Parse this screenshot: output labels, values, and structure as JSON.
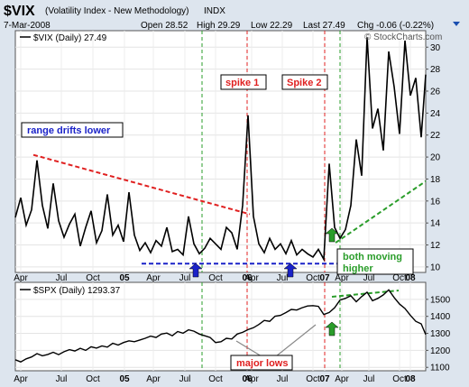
{
  "header": {
    "symbol": "$VIX",
    "name": "(Volatility Index - New Methodology)",
    "exchange": "INDX",
    "date": "7-Mar-2008",
    "open": "Open 28.52",
    "high": "High 29.29",
    "low": "Low 22.29",
    "last": "Last 27.49",
    "change": "Chg -0.06 (-0.22%)",
    "copyright": "© StockCharts.com"
  },
  "chart_data": [
    {
      "type": "line",
      "legend": "$VIX (Daily) 27.49",
      "ylim": [
        9.5,
        31.5
      ],
      "yticks": [
        10,
        12,
        14,
        16,
        18,
        20,
        22,
        24,
        26,
        28,
        30
      ],
      "x": [
        0,
        6,
        12,
        18,
        24,
        30,
        36,
        42,
        48,
        54,
        60,
        66,
        72,
        78,
        84,
        90,
        96,
        102,
        108,
        114,
        120,
        126,
        132,
        138,
        144,
        150,
        156,
        162,
        168,
        174,
        180,
        186,
        192,
        198,
        204,
        210,
        216,
        222,
        228,
        234,
        240,
        246,
        252,
        258,
        264,
        270,
        276,
        282,
        288,
        294,
        300,
        306,
        312,
        318,
        324,
        330,
        336,
        342,
        348,
        354,
        360,
        366,
        372,
        378,
        384,
        390,
        396,
        402,
        408,
        414,
        420,
        426,
        432,
        438,
        444,
        450,
        455
      ],
      "y": [
        14.5,
        16.3,
        13.8,
        15.2,
        19.7,
        15.6,
        13.5,
        17.6,
        14.2,
        12.7,
        13.9,
        14.8,
        11.9,
        13.6,
        15.1,
        12.2,
        13.3,
        16.6,
        12.9,
        13.8,
        12.3,
        16.8,
        12.9,
        11.5,
        12.2,
        11.3,
        12.4,
        11.9,
        13.6,
        11.4,
        11.6,
        11.1,
        14.6,
        12.1,
        11.2,
        11.7,
        12.6,
        12.1,
        11.6,
        13.6,
        13.1,
        11.6,
        15.6,
        23.8,
        14.6,
        12.1,
        11.3,
        12.6,
        11.6,
        12.1,
        11.2,
        12.4,
        11.1,
        11.6,
        11.2,
        10.9,
        11.6,
        10.7,
        19.4,
        13.6,
        12.6,
        13.4,
        15.6,
        21.6,
        18.3,
        30.9,
        22.6,
        24.4,
        20.6,
        29.6,
        26.4,
        22.1,
        30.6,
        25.6,
        27.2,
        21.8,
        27.5
      ],
      "lines": [
        {
          "from": [
            20,
            20.2
          ],
          "to": [
            260,
            14.8
          ],
          "color": "#e02020"
        },
        {
          "from": [
            355,
            12.2
          ],
          "to": [
            455,
            17.8
          ],
          "color": "#2a9d2a"
        },
        {
          "from": [
            140,
            10.3
          ],
          "to": [
            360,
            10.3
          ],
          "color": "#1a22c8"
        }
      ]
    },
    {
      "type": "line",
      "legend": "$SPX (Daily) 1293.37",
      "ylim": [
        1080,
        1600
      ],
      "yticks": [
        1100,
        1200,
        1300,
        1400,
        1500
      ],
      "x": [
        0,
        6,
        12,
        18,
        24,
        30,
        36,
        42,
        48,
        54,
        60,
        66,
        72,
        78,
        84,
        90,
        96,
        102,
        108,
        114,
        120,
        126,
        132,
        138,
        144,
        150,
        156,
        162,
        168,
        174,
        180,
        186,
        192,
        198,
        204,
        210,
        216,
        222,
        228,
        234,
        240,
        246,
        252,
        258,
        264,
        270,
        276,
        282,
        288,
        294,
        300,
        306,
        312,
        318,
        324,
        330,
        336,
        342,
        348,
        354,
        360,
        366,
        372,
        378,
        384,
        390,
        396,
        402,
        408,
        414,
        420,
        426,
        432,
        438,
        444,
        450,
        455
      ],
      "y": [
        1145,
        1132,
        1150,
        1161,
        1181,
        1168,
        1176,
        1189,
        1175,
        1192,
        1204,
        1196,
        1212,
        1200,
        1221,
        1213,
        1226,
        1219,
        1242,
        1231,
        1246,
        1256,
        1251,
        1261,
        1271,
        1284,
        1276,
        1296,
        1302,
        1286,
        1311,
        1301,
        1321,
        1313,
        1296,
        1286,
        1276,
        1246,
        1251,
        1271,
        1267,
        1296,
        1306,
        1322,
        1333,
        1352,
        1376,
        1371,
        1401,
        1406,
        1422,
        1441,
        1437,
        1451,
        1461,
        1463,
        1459,
        1411,
        1423,
        1451,
        1496,
        1506,
        1521,
        1486,
        1516,
        1542,
        1492,
        1506,
        1526,
        1556,
        1511,
        1472,
        1446,
        1406,
        1371,
        1356,
        1293
      ]
    }
  ],
  "xaxis": {
    "labels": [
      {
        "text": "Apr",
        "bold": false
      },
      {
        "text": "Jul",
        "bold": false
      },
      {
        "text": "Oct",
        "bold": false
      },
      {
        "text": "05",
        "bold": true
      },
      {
        "text": "Apr",
        "bold": false
      },
      {
        "text": "Jul",
        "bold": false
      },
      {
        "text": "Oct",
        "bold": false
      },
      {
        "text": "06",
        "bold": true
      },
      {
        "text": "Apr",
        "bold": false
      },
      {
        "text": "Jul",
        "bold": false
      },
      {
        "text": "Oct",
        "bold": false
      },
      {
        "text": "07",
        "bold": true
      },
      {
        "text": "Apr",
        "bold": false
      },
      {
        "text": "Jul",
        "bold": false
      },
      {
        "text": "Oct",
        "bold": false
      },
      {
        "text": "08",
        "bold": true
      }
    ]
  },
  "annotations": {
    "range": "range drifts lower",
    "spike1": "spike 1",
    "spike2": "Spike 2",
    "both_line1": "both moving",
    "both_line2": "higher",
    "major_lows": "major lows"
  },
  "colors": {
    "background": "#dde5ee",
    "panel": "#ffffff",
    "red": "#e02020",
    "green": "#2a9d2a",
    "blue": "#1a22c8"
  }
}
